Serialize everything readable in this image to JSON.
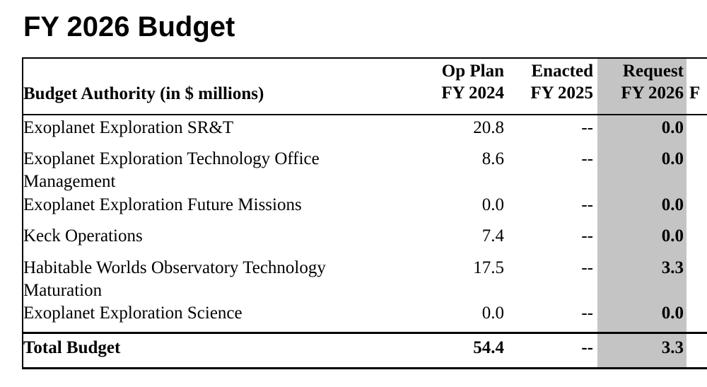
{
  "title": "FY 2026 Budget",
  "table": {
    "headers": {
      "label": "Budget Authority (in $ millions)",
      "col1": [
        "Op Plan",
        "FY 2024"
      ],
      "col2": [
        "Enacted",
        "FY 2025"
      ],
      "col3": [
        "Request",
        "FY 2026"
      ],
      "col4_partial": "F"
    },
    "rows": [
      {
        "label": "Exoplanet Exploration SR&T",
        "fy2024": "20.8",
        "fy2025": "--",
        "fy2026": "0.0"
      },
      {
        "label": "Exoplanet Exploration Technology Office Management",
        "fy2024": "8.6",
        "fy2025": "--",
        "fy2026": "0.0"
      },
      {
        "label": "Exoplanet Exploration Future Missions",
        "fy2024": "0.0",
        "fy2025": "--",
        "fy2026": "0.0"
      },
      {
        "label": "Keck Operations",
        "fy2024": "7.4",
        "fy2025": "--",
        "fy2026": "0.0"
      },
      {
        "label": "Habitable Worlds Observatory Technology Maturation",
        "fy2024": "17.5",
        "fy2025": "--",
        "fy2026": "3.3"
      },
      {
        "label": "Exoplanet Exploration Science",
        "fy2024": "0.0",
        "fy2025": "--",
        "fy2026": "0.0"
      }
    ],
    "total": {
      "label": "Total Budget",
      "fy2024": "54.4",
      "fy2025": "--",
      "fy2026": "3.3"
    }
  }
}
